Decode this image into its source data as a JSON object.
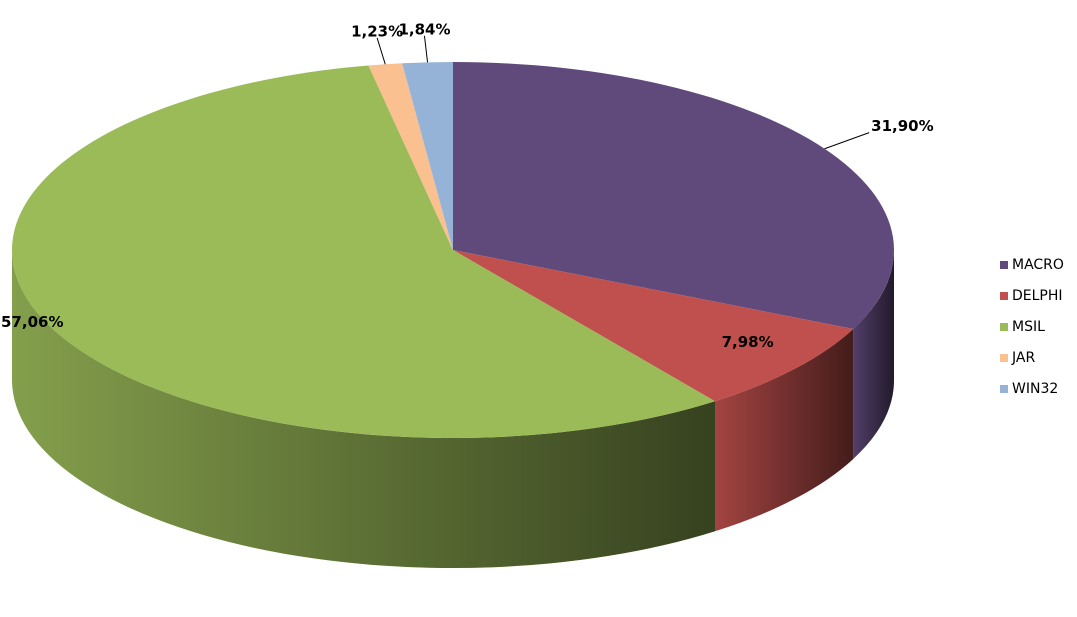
{
  "chart_data": {
    "type": "pie",
    "categories": [
      "MACRO",
      "DELPHI",
      "MSIL",
      "JAR",
      "WIN32"
    ],
    "values": [
      31.9,
      7.98,
      57.06,
      1.23,
      1.84
    ],
    "value_labels": [
      "31,90%",
      "7,98%",
      "57,06%",
      "1,23%",
      "1,84%"
    ],
    "colors": [
      "#604a7b",
      "#c0504d",
      "#9bbb59",
      "#fac090",
      "#95b3d7"
    ],
    "legend": "right"
  }
}
